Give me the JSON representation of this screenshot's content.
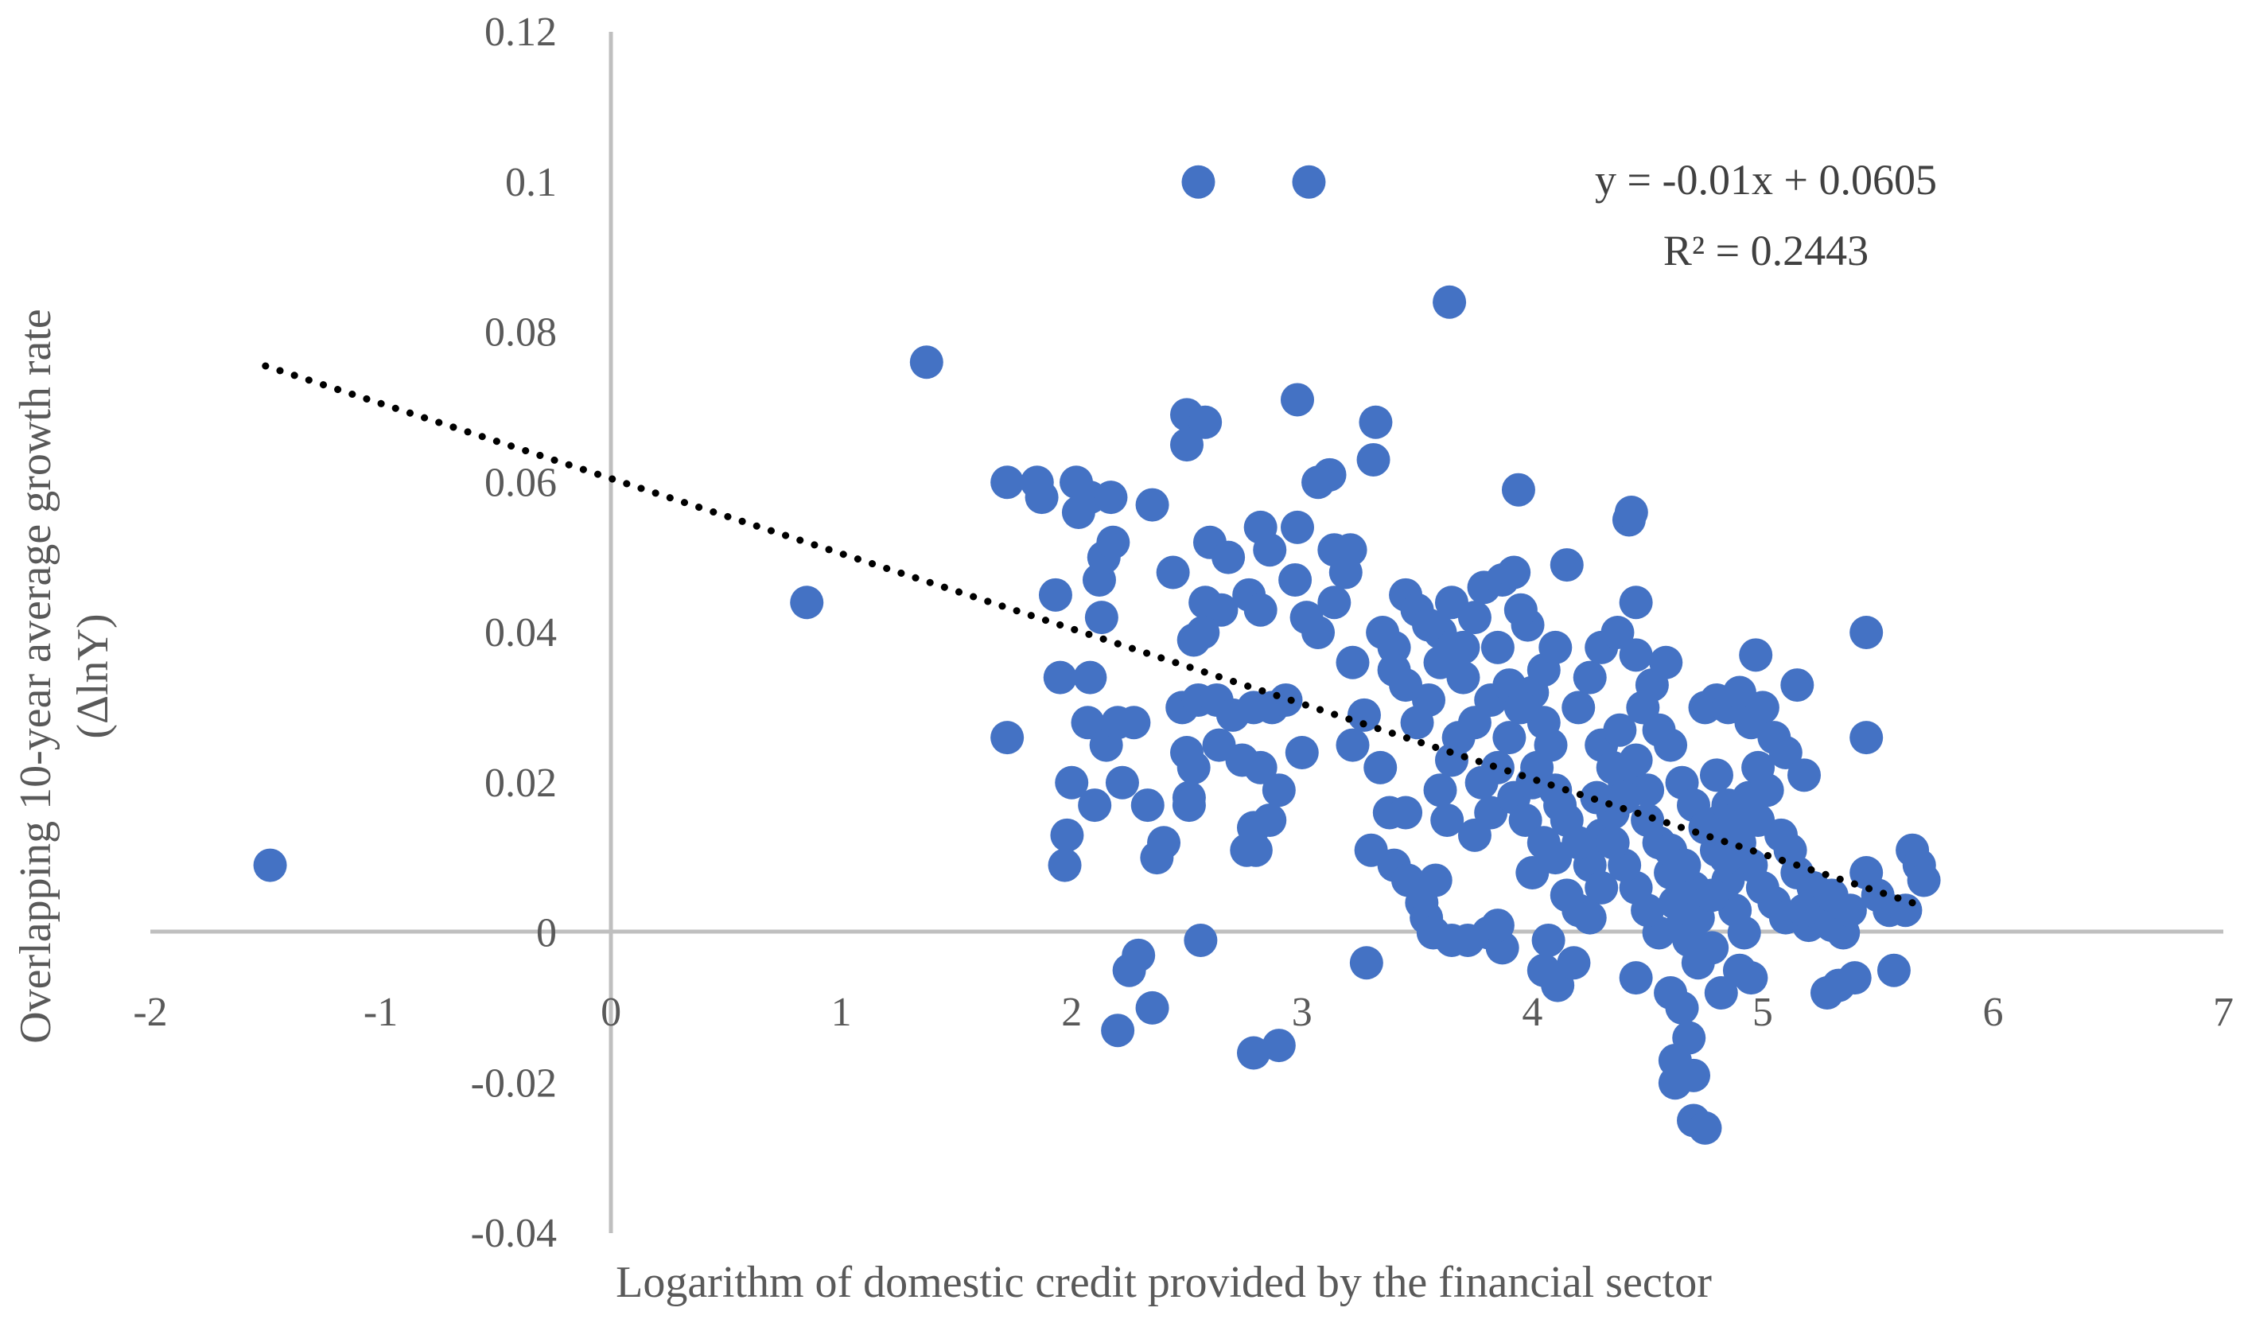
{
  "chart_data": {
    "type": "scatter",
    "title": "",
    "xlabel": "Logarithm of domestic credit provided by the financial sector",
    "ylabel_line1": "Overlapping 10-year average growth rate",
    "ylabel_line2": "(ΔlnY)",
    "xlim": [
      -2,
      7
    ],
    "ylim": [
      -0.04,
      0.12
    ],
    "x_ticks": [
      "-2",
      "-1",
      "0",
      "1",
      "2",
      "3",
      "4",
      "5",
      "6",
      "7"
    ],
    "y_ticks": [
      "-0.04",
      "-0.02",
      "0",
      "0.02",
      "0.04",
      "0.06",
      "0.08",
      "0.1",
      "0.12"
    ],
    "grid": false,
    "legend": "none",
    "marker_color": "#4472C4",
    "trendline": {
      "type": "linear",
      "slope": -0.01,
      "intercept": 0.0605,
      "x_range": [
        -1.5,
        5.65
      ],
      "style": "dotted",
      "color": "#000000"
    },
    "equation_text": "y = -0.01x + 0.0605",
    "r2_text": "R² = 0.2443",
    "points": [
      [
        -1.48,
        0.009
      ],
      [
        0.85,
        0.044
      ],
      [
        1.37,
        0.076
      ],
      [
        2.55,
        0.1
      ],
      [
        3.03,
        0.1
      ],
      [
        3.64,
        0.084
      ],
      [
        1.72,
        0.06
      ],
      [
        1.85,
        0.06
      ],
      [
        1.87,
        0.058
      ],
      [
        2.02,
        0.06
      ],
      [
        2.08,
        0.058
      ],
      [
        2.17,
        0.058
      ],
      [
        2.35,
        0.057
      ],
      [
        2.03,
        0.056
      ],
      [
        1.93,
        0.045
      ],
      [
        2.12,
        0.047
      ],
      [
        2.14,
        0.05
      ],
      [
        2.13,
        0.042
      ],
      [
        2.18,
        0.052
      ],
      [
        2.44,
        0.048
      ],
      [
        1.72,
        0.026
      ],
      [
        1.95,
        0.034
      ],
      [
        2.08,
        0.034
      ],
      [
        2.07,
        0.028
      ],
      [
        2.15,
        0.025
      ],
      [
        2.2,
        0.028
      ],
      [
        2.27,
        0.028
      ],
      [
        2.0,
        0.02
      ],
      [
        2.1,
        0.017
      ],
      [
        2.22,
        0.02
      ],
      [
        2.33,
        0.017
      ],
      [
        1.98,
        0.013
      ],
      [
        1.97,
        0.009
      ],
      [
        2.37,
        0.01
      ],
      [
        2.4,
        0.012
      ],
      [
        2.25,
        -0.005
      ],
      [
        2.29,
        -0.003
      ],
      [
        2.2,
        -0.013
      ],
      [
        2.35,
        -0.01
      ],
      [
        2.56,
        -0.001
      ],
      [
        2.5,
        0.069
      ],
      [
        2.58,
        0.068
      ],
      [
        2.5,
        0.065
      ],
      [
        2.98,
        0.071
      ],
      [
        3.12,
        0.061
      ],
      [
        3.07,
        0.06
      ],
      [
        3.32,
        0.068
      ],
      [
        3.31,
        0.063
      ],
      [
        2.6,
        0.052
      ],
      [
        2.68,
        0.05
      ],
      [
        2.82,
        0.054
      ],
      [
        2.98,
        0.054
      ],
      [
        2.86,
        0.051
      ],
      [
        3.14,
        0.051
      ],
      [
        3.21,
        0.051
      ],
      [
        3.19,
        0.048
      ],
      [
        2.58,
        0.044
      ],
      [
        2.65,
        0.043
      ],
      [
        2.57,
        0.04
      ],
      [
        2.53,
        0.039
      ],
      [
        2.77,
        0.045
      ],
      [
        2.82,
        0.043
      ],
      [
        2.97,
        0.047
      ],
      [
        3.02,
        0.042
      ],
      [
        3.14,
        0.044
      ],
      [
        3.07,
        0.04
      ],
      [
        2.48,
        0.03
      ],
      [
        2.55,
        0.031
      ],
      [
        2.63,
        0.031
      ],
      [
        2.7,
        0.029
      ],
      [
        2.79,
        0.03
      ],
      [
        2.87,
        0.03
      ],
      [
        2.93,
        0.031
      ],
      [
        2.5,
        0.024
      ],
      [
        2.53,
        0.022
      ],
      [
        2.64,
        0.025
      ],
      [
        2.74,
        0.023
      ],
      [
        2.82,
        0.022
      ],
      [
        2.51,
        0.018
      ],
      [
        2.51,
        0.017
      ],
      [
        3.0,
        0.024
      ],
      [
        2.9,
        0.019
      ],
      [
        2.86,
        0.015
      ],
      [
        2.79,
        0.014
      ],
      [
        2.76,
        0.011
      ],
      [
        2.8,
        0.011
      ],
      [
        3.22,
        0.036
      ],
      [
        3.27,
        0.029
      ],
      [
        3.22,
        0.025
      ],
      [
        3.4,
        0.038
      ],
      [
        3.45,
        0.045
      ],
      [
        3.5,
        0.043
      ],
      [
        3.6,
        0.04
      ],
      [
        3.7,
        0.038
      ],
      [
        3.34,
        0.022
      ],
      [
        3.38,
        0.016
      ],
      [
        3.45,
        0.016
      ],
      [
        3.3,
        0.011
      ],
      [
        3.4,
        0.009
      ],
      [
        3.46,
        0.007
      ],
      [
        3.52,
        0.004
      ],
      [
        3.54,
        0.002
      ],
      [
        3.57,
        0.0
      ],
      [
        3.58,
        0.007
      ],
      [
        3.63,
        0.015
      ],
      [
        3.6,
        0.019
      ],
      [
        3.65,
        0.023
      ],
      [
        3.68,
        0.026
      ],
      [
        3.75,
        0.028
      ],
      [
        3.82,
        0.031
      ],
      [
        3.9,
        0.033
      ],
      [
        3.79,
        0.046
      ],
      [
        3.87,
        0.047
      ],
      [
        3.92,
        0.048
      ],
      [
        3.94,
        0.059
      ],
      [
        3.98,
        0.041
      ],
      [
        4.05,
        0.035
      ],
      [
        4.1,
        0.038
      ],
      [
        3.65,
        -0.001
      ],
      [
        3.72,
        -0.001
      ],
      [
        3.81,
        0.0
      ],
      [
        3.87,
        -0.002
      ],
      [
        3.85,
        0.001
      ],
      [
        3.75,
        0.013
      ],
      [
        3.82,
        0.016
      ],
      [
        3.78,
        0.02
      ],
      [
        3.92,
        0.018
      ],
      [
        3.97,
        0.015
      ],
      [
        4.02,
        0.022
      ],
      [
        4.08,
        0.025
      ],
      [
        3.28,
        -0.004
      ],
      [
        2.79,
        -0.016
      ],
      [
        2.9,
        -0.015
      ],
      [
        4.0,
        0.008
      ],
      [
        4.05,
        0.012
      ],
      [
        4.1,
        0.01
      ],
      [
        4.15,
        0.005
      ],
      [
        4.2,
        0.003
      ],
      [
        4.25,
        0.009
      ],
      [
        4.3,
        0.013
      ],
      [
        4.35,
        0.016
      ],
      [
        4.4,
        0.02
      ],
      [
        4.45,
        0.023
      ],
      [
        4.5,
        0.019
      ],
      [
        4.55,
        0.012
      ],
      [
        4.6,
        0.008
      ],
      [
        4.62,
        0.004
      ],
      [
        4.65,
        0.001
      ],
      [
        4.7,
        0.006
      ],
      [
        4.2,
        0.03
      ],
      [
        4.25,
        0.034
      ],
      [
        4.3,
        0.038
      ],
      [
        4.37,
        0.04
      ],
      [
        4.45,
        0.037
      ],
      [
        4.52,
        0.033
      ],
      [
        4.58,
        0.036
      ],
      [
        4.15,
        0.049
      ],
      [
        4.42,
        0.055
      ],
      [
        4.43,
        0.056
      ],
      [
        4.45,
        0.044
      ],
      [
        4.07,
        -0.001
      ],
      [
        4.05,
        -0.005
      ],
      [
        4.11,
        -0.007
      ],
      [
        4.18,
        -0.004
      ],
      [
        4.45,
        -0.006
      ],
      [
        4.6,
        -0.008
      ],
      [
        4.65,
        -0.01
      ],
      [
        4.68,
        -0.014
      ],
      [
        4.62,
        -0.017
      ],
      [
        4.62,
        -0.02
      ],
      [
        4.7,
        -0.019
      ],
      [
        4.7,
        -0.025
      ],
      [
        4.75,
        -0.026
      ],
      [
        4.82,
        -0.008
      ],
      [
        4.9,
        -0.005
      ],
      [
        4.95,
        -0.006
      ],
      [
        4.75,
        0.03
      ],
      [
        4.8,
        0.031
      ],
      [
        4.85,
        0.03
      ],
      [
        4.9,
        0.032
      ],
      [
        4.95,
        0.028
      ],
      [
        5.0,
        0.03
      ],
      [
        5.05,
        0.026
      ],
      [
        4.97,
        0.037
      ],
      [
        5.1,
        0.024
      ],
      [
        5.15,
        0.033
      ],
      [
        5.18,
        0.021
      ],
      [
        4.8,
        0.021
      ],
      [
        4.85,
        0.017
      ],
      [
        4.82,
        0.015
      ],
      [
        4.9,
        0.012
      ],
      [
        4.95,
        0.009
      ],
      [
        5.0,
        0.006
      ],
      [
        5.05,
        0.004
      ],
      [
        5.1,
        0.002
      ],
      [
        5.12,
        0.011
      ],
      [
        5.2,
        0.001
      ],
      [
        5.25,
        0.004
      ],
      [
        5.3,
        0.001
      ],
      [
        5.35,
        0.0
      ],
      [
        5.28,
        -0.008
      ],
      [
        5.33,
        -0.007
      ],
      [
        5.4,
        -0.006
      ],
      [
        5.45,
        0.008
      ],
      [
        5.5,
        0.005
      ],
      [
        5.55,
        0.003
      ],
      [
        5.45,
        0.04
      ],
      [
        5.45,
        0.026
      ],
      [
        5.57,
        -0.005
      ],
      [
        5.65,
        0.011
      ],
      [
        5.68,
        0.009
      ],
      [
        5.7,
        0.007
      ],
      [
        5.62,
        0.003
      ],
      [
        4.3,
        0.025
      ],
      [
        4.35,
        0.022
      ],
      [
        4.4,
        0.018
      ],
      [
        4.5,
        0.015
      ],
      [
        4.55,
        0.027
      ],
      [
        4.6,
        0.025
      ],
      [
        4.65,
        0.02
      ],
      [
        4.7,
        0.017
      ],
      [
        4.75,
        0.014
      ],
      [
        4.8,
        0.011
      ],
      [
        4.85,
        0.007
      ],
      [
        4.88,
        0.003
      ],
      [
        4.92,
        0.0
      ],
      [
        4.78,
        -0.002
      ],
      [
        4.72,
        -0.004
      ],
      [
        4.68,
        -0.001
      ],
      [
        4.55,
        0.0
      ],
      [
        4.5,
        0.003
      ],
      [
        4.45,
        0.006
      ],
      [
        4.4,
        0.009
      ],
      [
        4.35,
        0.012
      ],
      [
        4.3,
        0.006
      ],
      [
        4.25,
        0.002
      ],
      [
        4.15,
        0.015
      ],
      [
        4.1,
        0.019
      ],
      [
        4.05,
        0.028
      ],
      [
        4.0,
        0.032
      ],
      [
        3.95,
        0.03
      ],
      [
        3.9,
        0.026
      ],
      [
        3.85,
        0.022
      ],
      [
        3.7,
        0.034
      ],
      [
        3.6,
        0.036
      ],
      [
        3.55,
        0.031
      ],
      [
        3.5,
        0.028
      ],
      [
        3.45,
        0.033
      ],
      [
        3.4,
        0.035
      ],
      [
        3.35,
        0.04
      ],
      [
        3.55,
        0.041
      ],
      [
        3.65,
        0.044
      ],
      [
        3.75,
        0.042
      ],
      [
        3.85,
        0.038
      ],
      [
        3.95,
        0.043
      ],
      [
        4.0,
        0.02
      ],
      [
        4.12,
        0.017
      ],
      [
        4.2,
        0.012
      ],
      [
        4.28,
        0.018
      ],
      [
        4.38,
        0.027
      ],
      [
        4.48,
        0.03
      ],
      [
        4.98,
        0.015
      ],
      [
        5.02,
        0.019
      ],
      [
        5.08,
        0.013
      ],
      [
        5.15,
        0.008
      ],
      [
        5.22,
        0.006
      ],
      [
        5.18,
        0.003
      ],
      [
        5.3,
        0.005
      ],
      [
        5.38,
        0.003
      ],
      [
        4.6,
        0.011
      ],
      [
        4.66,
        0.009
      ],
      [
        4.72,
        0.002
      ],
      [
        4.78,
        0.005
      ],
      [
        4.84,
        0.01
      ],
      [
        4.9,
        0.014
      ],
      [
        4.94,
        0.018
      ],
      [
        4.98,
        0.022
      ]
    ]
  }
}
